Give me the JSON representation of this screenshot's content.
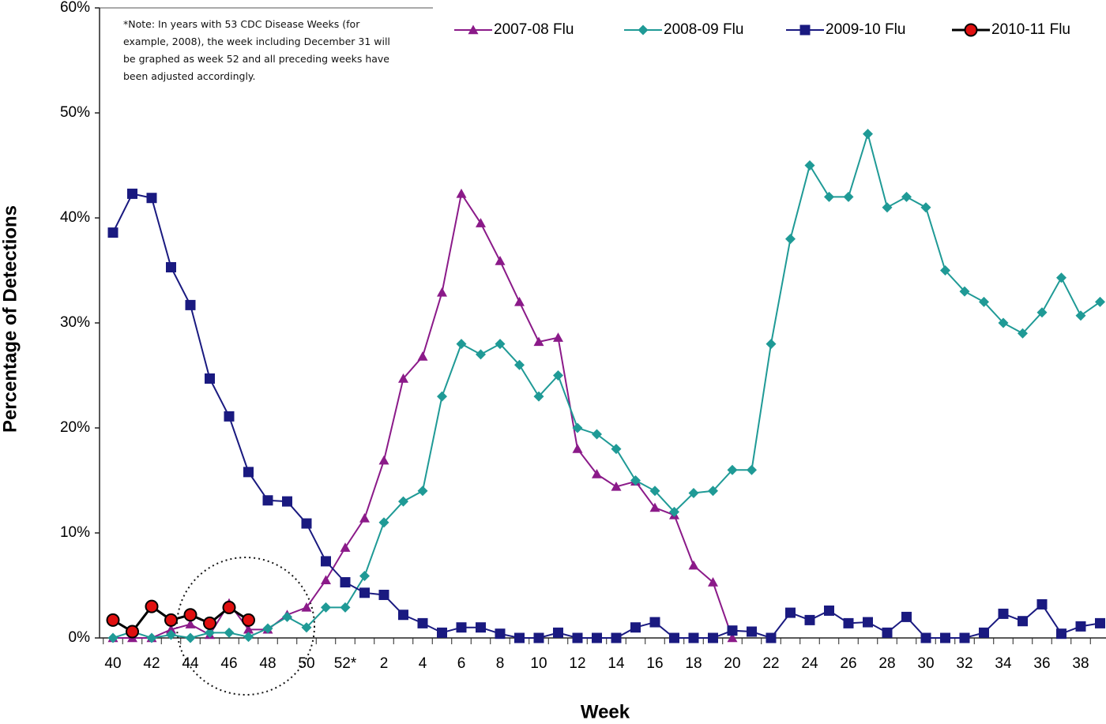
{
  "chart_data": {
    "type": "line",
    "note": "*Note: In years with 53 CDC Disease Weeks (for example, 2008), the week including December 31 will be graphed as week 52 and all preceding weeks have been adjusted accordingly.",
    "x_label": "Week",
    "y_label": "Percentage of Detections",
    "categories": [
      "40",
      null,
      "42",
      null,
      "44",
      null,
      "46",
      null,
      "48",
      null,
      "50",
      null,
      "52*",
      null,
      "2",
      null,
      "4",
      null,
      "6",
      null,
      "8",
      null,
      "10",
      null,
      "12",
      null,
      "14",
      null,
      "16",
      null,
      "18",
      null,
      "20",
      null,
      "22",
      null,
      "24",
      null,
      "26",
      null,
      "28",
      null,
      "30",
      null,
      "32",
      null,
      "34",
      null,
      "36",
      null,
      "38",
      null
    ],
    "ylim": [
      0,
      60
    ],
    "yticks": [
      {
        "value": 0,
        "label": "0%"
      },
      {
        "value": 10,
        "label": "10%"
      },
      {
        "value": 20,
        "label": "20%"
      },
      {
        "value": 30,
        "label": "30%"
      },
      {
        "value": 40,
        "label": "40%"
      },
      {
        "value": 50,
        "label": "50%"
      },
      {
        "value": 60,
        "label": "60%"
      }
    ],
    "grid": false,
    "legend": "top",
    "series": [
      {
        "name": "2007-08 Flu",
        "color": "#8b1a89",
        "marker": "triangle",
        "values": [
          0,
          0,
          0,
          0.8,
          1.3,
          0.3,
          3.3,
          0.8,
          0.8,
          2.2,
          2.9,
          5.5,
          8.6,
          11.4,
          16.9,
          24.7,
          26.8,
          32.9,
          42.3,
          39.5,
          35.9,
          32.0,
          28.2,
          28.6,
          18.0,
          15.6,
          14.4,
          14.9,
          12.4,
          11.7,
          6.9,
          5.3,
          0,
          null,
          null,
          null,
          null,
          null,
          null,
          null,
          null,
          null,
          null,
          null,
          null,
          null,
          null,
          null,
          null,
          null,
          null,
          null
        ]
      },
      {
        "name": "2008-09 Flu",
        "color": "#1f9a96",
        "marker": "diamond",
        "values": [
          0,
          0.6,
          0,
          0.3,
          0,
          0.5,
          0.5,
          0.1,
          0.9,
          2.0,
          1.0,
          2.9,
          2.9,
          5.9,
          11.0,
          13.0,
          14.0,
          23.0,
          28.0,
          27.0,
          28.0,
          26.0,
          23.0,
          25.0,
          20.0,
          19.4,
          18.0,
          15.0,
          14.0,
          12.0,
          13.8,
          14.0,
          16.0,
          16.0,
          28.0,
          38.0,
          45.0,
          42.0,
          42.0,
          48.0,
          41.0,
          42.0,
          41.0,
          35.0,
          33.0,
          32.0,
          30.0,
          29.0,
          31.0,
          34.3,
          30.7,
          32.0
        ]
      },
      {
        "name": "2009-10 Flu",
        "color": "#1a1a80",
        "marker": "square",
        "values": [
          38.6,
          42.3,
          41.9,
          35.3,
          31.7,
          24.7,
          21.1,
          15.8,
          13.1,
          13.0,
          10.9,
          7.3,
          5.3,
          4.3,
          4.1,
          2.2,
          1.4,
          0.5,
          1.0,
          1.0,
          0.4,
          0,
          0,
          0.5,
          0,
          0,
          0,
          1.0,
          1.5,
          0,
          0,
          0,
          0.7,
          0.6,
          0,
          2.4,
          1.7,
          2.6,
          1.4,
          1.5,
          0.5,
          2.0,
          0,
          0,
          0,
          0.5,
          2.3,
          1.6,
          3.2,
          0.4,
          1.1,
          1.4
        ]
      },
      {
        "name": "2010-11 Flu",
        "color": "#e01010",
        "line_color": "#000000",
        "marker": "circle",
        "values": [
          1.7,
          0.6,
          3.0,
          1.7,
          2.2,
          1.4,
          2.9,
          1.7,
          null,
          null,
          null,
          null,
          null,
          null,
          null,
          null,
          null,
          null,
          null,
          null,
          null,
          null,
          null,
          null,
          null,
          null,
          null,
          null,
          null,
          null,
          null,
          null,
          null,
          null,
          null,
          null,
          null,
          null,
          null,
          null,
          null,
          null,
          null,
          null,
          null,
          null,
          null,
          null,
          null,
          null,
          null,
          null
        ]
      }
    ]
  }
}
